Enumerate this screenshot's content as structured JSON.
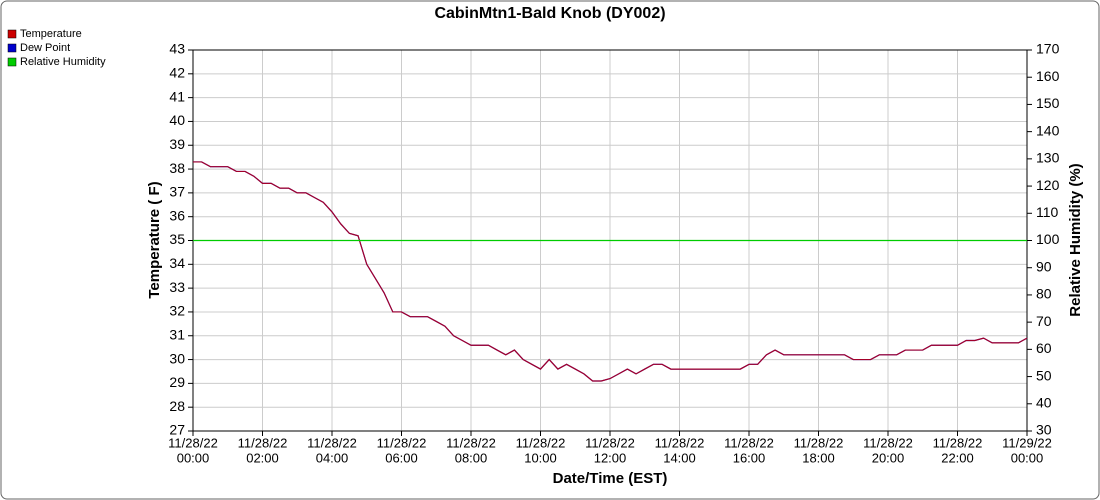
{
  "chart_data": {
    "type": "line",
    "title": "CabinMtn1-Bald Knob (DY002)",
    "xlabel": "Date/Time (EST)",
    "ylabel": "Temperature ( F)",
    "y2label": "Relative Humidity (%)",
    "xlim": [
      0,
      24
    ],
    "xticks": [
      {
        "value": 0,
        "label": [
          "11/28/22",
          "00:00"
        ]
      },
      {
        "value": 2,
        "label": [
          "11/28/22",
          "02:00"
        ]
      },
      {
        "value": 4,
        "label": [
          "11/28/22",
          "04:00"
        ]
      },
      {
        "value": 6,
        "label": [
          "11/28/22",
          "06:00"
        ]
      },
      {
        "value": 8,
        "label": [
          "11/28/22",
          "08:00"
        ]
      },
      {
        "value": 10,
        "label": [
          "11/28/22",
          "10:00"
        ]
      },
      {
        "value": 12,
        "label": [
          "11/28/22",
          "12:00"
        ]
      },
      {
        "value": 14,
        "label": [
          "11/28/22",
          "14:00"
        ]
      },
      {
        "value": 16,
        "label": [
          "11/28/22",
          "16:00"
        ]
      },
      {
        "value": 18,
        "label": [
          "11/28/22",
          "18:00"
        ]
      },
      {
        "value": 20,
        "label": [
          "11/28/22",
          "20:00"
        ]
      },
      {
        "value": 22,
        "label": [
          "11/28/22",
          "22:00"
        ]
      },
      {
        "value": 24,
        "label": [
          "11/29/22",
          "00:00"
        ]
      }
    ],
    "ylim": [
      27,
      43
    ],
    "yticks": [
      27,
      28,
      29,
      30,
      31,
      32,
      33,
      34,
      35,
      36,
      37,
      38,
      39,
      40,
      41,
      42,
      43
    ],
    "y2lim": [
      30,
      170
    ],
    "y2ticks": [
      30,
      40,
      50,
      60,
      70,
      80,
      90,
      100,
      110,
      120,
      130,
      140,
      150,
      160,
      170
    ],
    "grid": true,
    "legend": "top-left",
    "x": [
      0,
      0.25,
      0.5,
      0.75,
      1,
      1.25,
      1.5,
      1.75,
      2,
      2.25,
      2.5,
      2.75,
      3,
      3.25,
      3.5,
      3.75,
      4,
      4.25,
      4.5,
      4.75,
      5,
      5.25,
      5.5,
      5.75,
      6,
      6.25,
      6.5,
      6.75,
      7,
      7.25,
      7.5,
      7.75,
      8,
      8.25,
      8.5,
      8.75,
      9,
      9.25,
      9.5,
      9.75,
      10,
      10.25,
      10.5,
      10.75,
      11,
      11.25,
      11.5,
      11.75,
      12,
      12.25,
      12.5,
      12.75,
      13,
      13.25,
      13.5,
      13.75,
      14,
      14.25,
      14.5,
      14.75,
      15,
      15.25,
      15.5,
      15.75,
      16,
      16.25,
      16.5,
      16.75,
      17,
      17.25,
      17.5,
      17.75,
      18,
      18.25,
      18.5,
      18.75,
      19,
      19.25,
      19.5,
      19.75,
      20,
      20.25,
      20.5,
      20.75,
      21,
      21.25,
      21.5,
      21.75,
      22,
      22.25,
      22.5,
      22.75,
      23,
      23.25,
      23.5,
      23.75,
      24
    ],
    "series": [
      {
        "name": "Temperature",
        "color": "#cc0000",
        "values": [
          38.3,
          38.3,
          38.1,
          38.1,
          38.1,
          37.9,
          37.9,
          37.7,
          37.4,
          37.4,
          37.2,
          37.2,
          37.0,
          37.0,
          36.8,
          36.6,
          36.2,
          35.7,
          35.3,
          35.2,
          34.0,
          33.4,
          32.8,
          32.0,
          32.0,
          31.8,
          31.8,
          31.8,
          31.6,
          31.4,
          31.0,
          30.8,
          30.6,
          30.6,
          30.6,
          30.4,
          30.2,
          30.4,
          30.0,
          29.8,
          29.6,
          30.0,
          29.6,
          29.8,
          29.6,
          29.4,
          29.1,
          29.1,
          29.2,
          29.4,
          29.6,
          29.4,
          29.6,
          29.8,
          29.8,
          29.6,
          29.6,
          29.6,
          29.6,
          29.6,
          29.6,
          29.6,
          29.6,
          29.6,
          29.8,
          29.8,
          30.2,
          30.4,
          30.2,
          30.2,
          30.2,
          30.2,
          30.2,
          30.2,
          30.2,
          30.2,
          30.0,
          30.0,
          30.0,
          30.2,
          30.2,
          30.2,
          30.4,
          30.4,
          30.4,
          30.6,
          30.6,
          30.6,
          30.6,
          30.8,
          30.8,
          30.9,
          30.7,
          30.7,
          30.7,
          30.7,
          30.9
        ]
      },
      {
        "name": "Dew Point",
        "color": "#0000cc",
        "values": [
          38.3,
          38.3,
          38.1,
          38.1,
          38.1,
          37.9,
          37.9,
          37.7,
          37.4,
          37.4,
          37.2,
          37.2,
          37.0,
          37.0,
          36.8,
          36.6,
          36.2,
          35.7,
          35.3,
          35.2,
          34.0,
          33.4,
          32.8,
          32.0,
          32.0,
          31.8,
          31.8,
          31.8,
          31.6,
          31.4,
          31.0,
          30.8,
          30.6,
          30.6,
          30.6,
          30.4,
          30.2,
          30.4,
          30.0,
          29.8,
          29.6,
          30.0,
          29.6,
          29.8,
          29.6,
          29.4,
          29.1,
          29.1,
          29.2,
          29.4,
          29.6,
          29.4,
          29.6,
          29.8,
          29.8,
          29.6,
          29.6,
          29.6,
          29.6,
          29.6,
          29.6,
          29.6,
          29.6,
          29.6,
          29.8,
          29.8,
          30.2,
          30.4,
          30.2,
          30.2,
          30.2,
          30.2,
          30.2,
          30.2,
          30.2,
          30.2,
          30.0,
          30.0,
          30.0,
          30.2,
          30.2,
          30.2,
          30.4,
          30.4,
          30.4,
          30.6,
          30.6,
          30.6,
          30.6,
          30.8,
          30.8,
          30.9,
          30.7,
          30.7,
          30.7,
          30.7,
          30.9
        ]
      },
      {
        "name": "Relative Humidity",
        "color": "#00cc00",
        "axis": "y2",
        "x": [
          0,
          24
        ],
        "values": [
          100,
          100
        ]
      }
    ]
  }
}
